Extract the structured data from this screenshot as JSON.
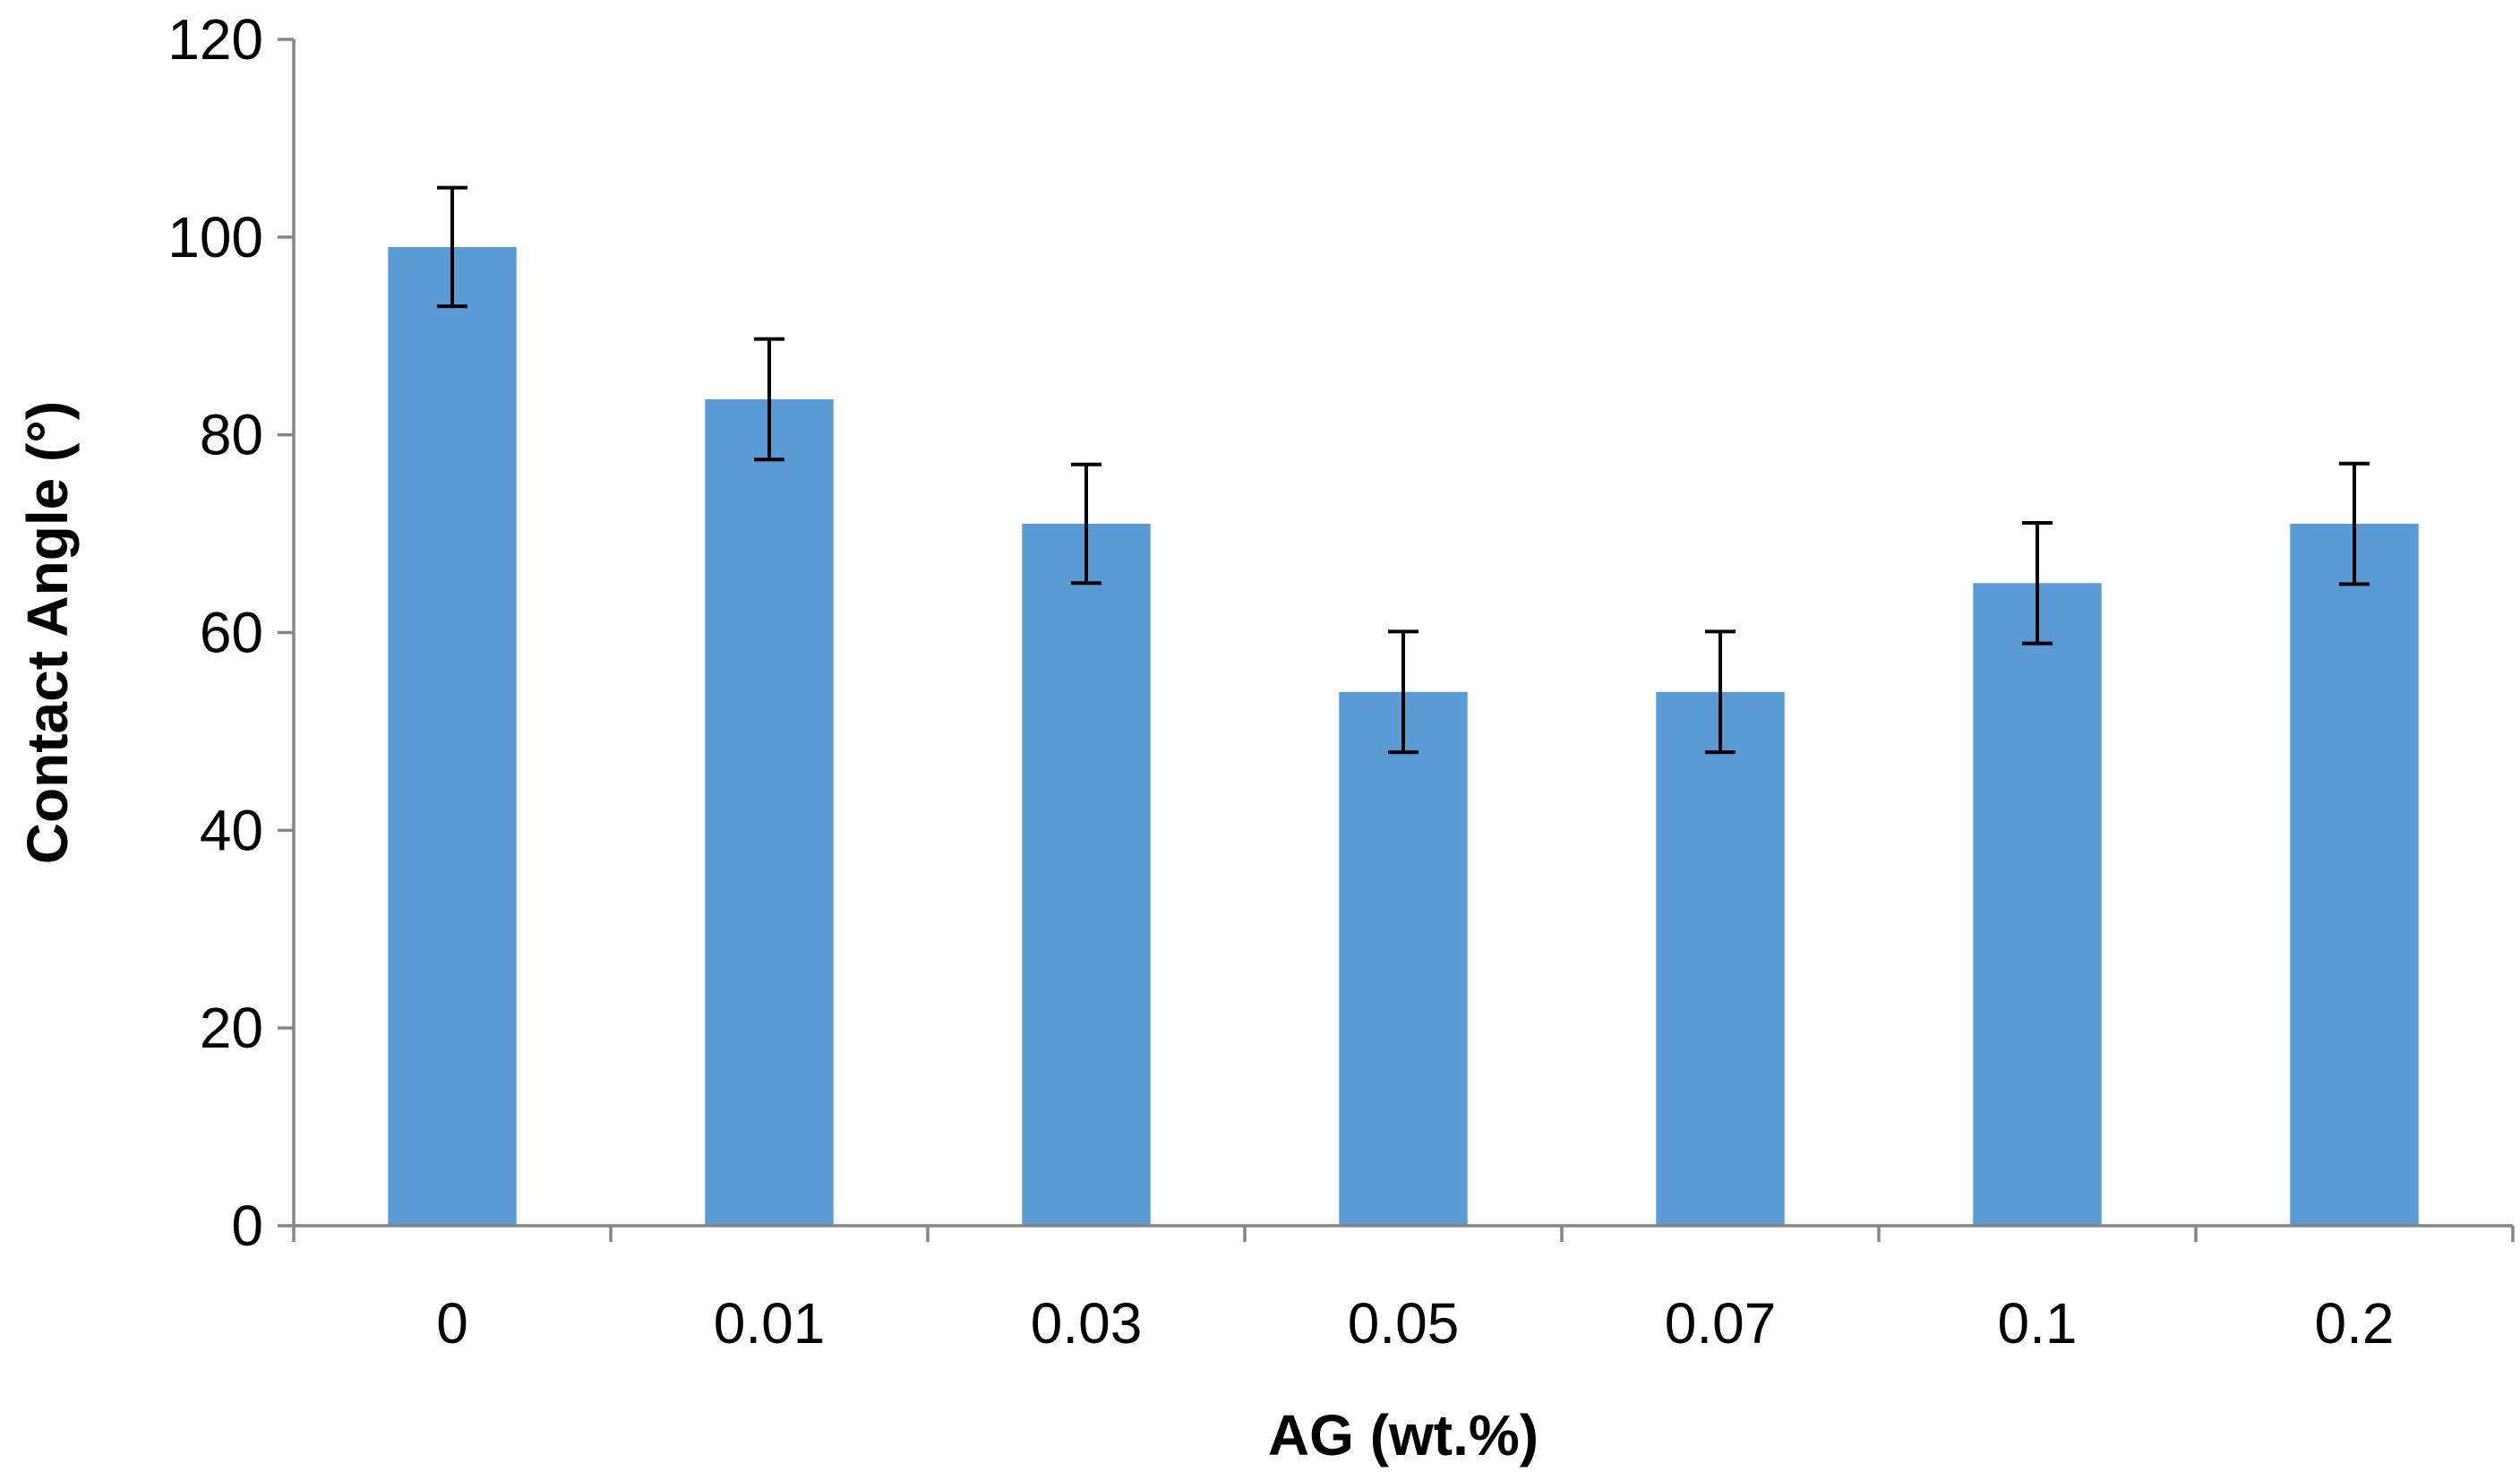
{
  "chart_data": {
    "type": "bar",
    "title": "",
    "xlabel": "AG (wt.%)",
    "ylabel": "Contact Angle (°)",
    "categories": [
      "0",
      "0.01",
      "0.03",
      "0.05",
      "0.07",
      "0.1",
      "0.2"
    ],
    "series": [
      {
        "name": "Contact Angle",
        "values": [
          99,
          83.6,
          71,
          54,
          54,
          65,
          71
        ],
        "error": [
          6,
          6.1,
          6,
          6.1,
          6.1,
          6.1,
          6.1
        ]
      }
    ],
    "ylim": [
      0,
      120
    ],
    "yticks": [
      0,
      20,
      40,
      60,
      80,
      100,
      120
    ],
    "ytick_labels": [
      "0",
      "20",
      "40",
      "60",
      "80",
      "100",
      "120"
    ],
    "grid": false,
    "legend": "none",
    "bar_color": "#5B9BD5",
    "axis_color": "#868686",
    "errorbar_color": "#000000"
  }
}
